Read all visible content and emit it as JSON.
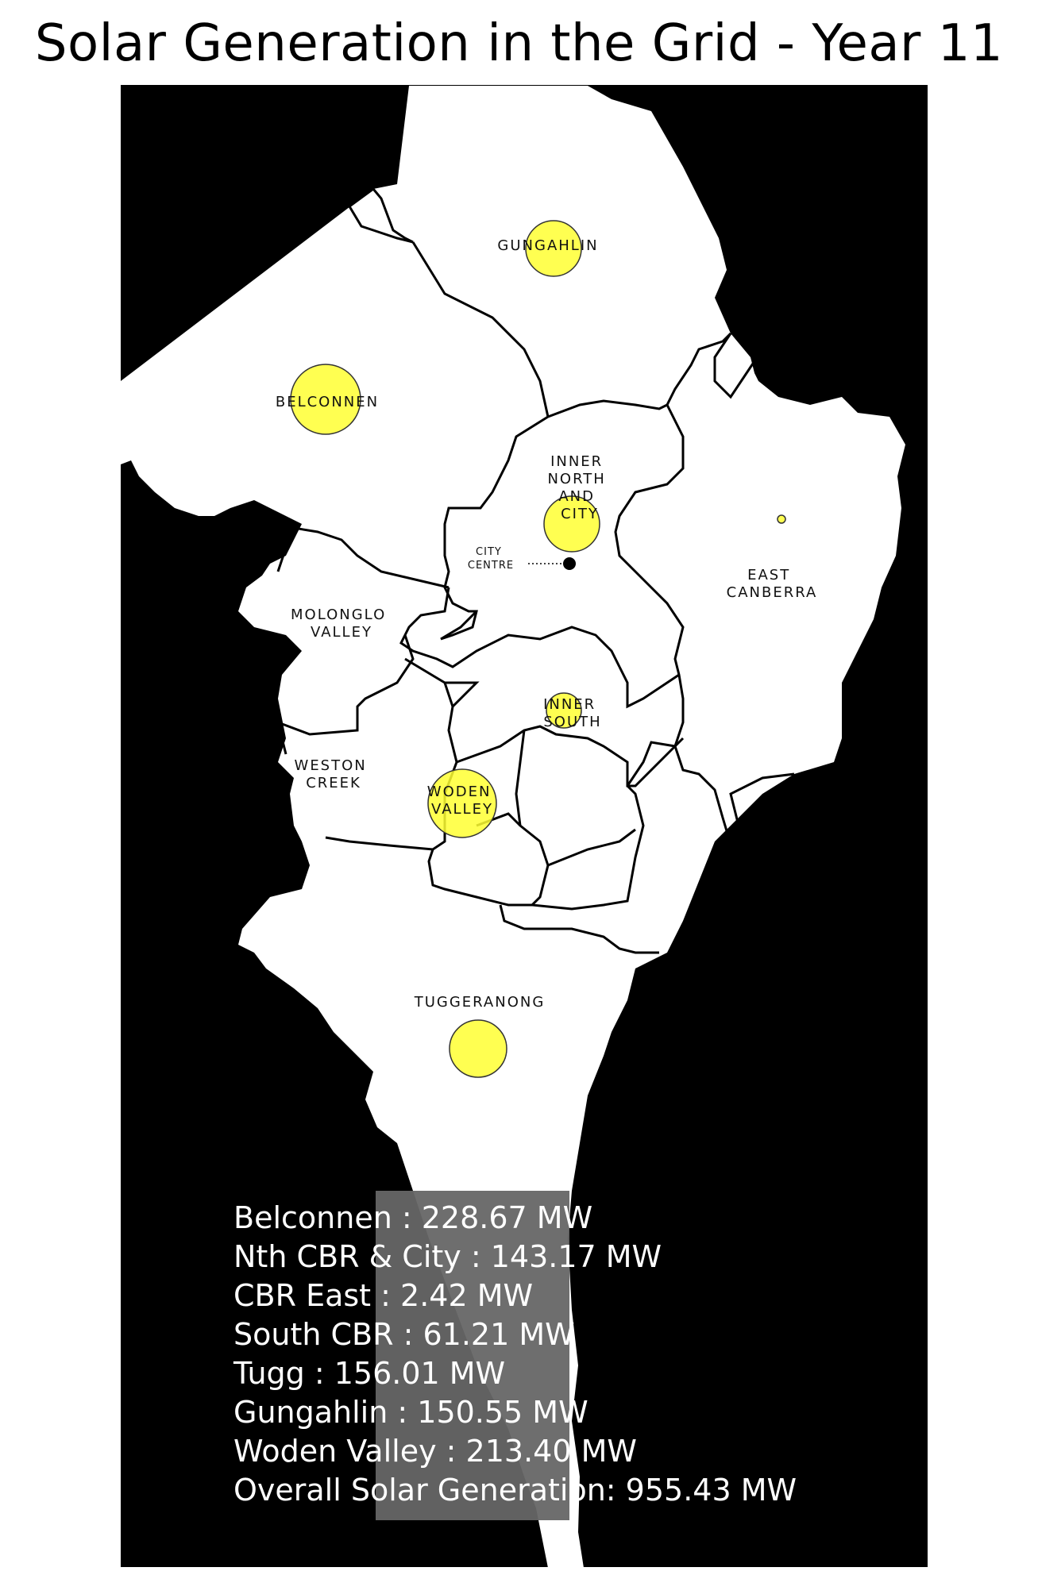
{
  "title": "Solar Generation in the Grid - Year 11",
  "colors": {
    "ocean": "#000000",
    "land": "#ffffff",
    "bubble": "#ffff33",
    "panel": "#666666"
  },
  "regions": [
    {
      "id": "gungahlin",
      "label_lines": [
        "GUNGAHLIN"
      ]
    },
    {
      "id": "belconnen",
      "label_lines": [
        "BELCONNEN"
      ]
    },
    {
      "id": "inner-north",
      "label_lines": [
        "INNER",
        "NORTH",
        "AND",
        "CITY"
      ]
    },
    {
      "id": "east-canberra",
      "label_lines": [
        "EAST",
        "CANBERRA"
      ]
    },
    {
      "id": "molonglo",
      "label_lines": [
        "MOLONGLO",
        "VALLEY"
      ]
    },
    {
      "id": "inner-south",
      "label_lines": [
        "INNER",
        "SOUTH"
      ]
    },
    {
      "id": "weston",
      "label_lines": [
        "WESTON",
        "CREEK"
      ]
    },
    {
      "id": "woden",
      "label_lines": [
        "WODEN",
        "VALLEY"
      ]
    },
    {
      "id": "tuggeranong",
      "label_lines": [
        "TUGGERANONG"
      ]
    }
  ],
  "city_centre": {
    "label_lines": [
      "CITY",
      "CENTRE"
    ]
  },
  "generation": [
    {
      "region": "Belconnen",
      "mw": 228.67
    },
    {
      "region": "Nth CBR & City",
      "mw": 143.17
    },
    {
      "region": "CBR East",
      "mw": 2.42
    },
    {
      "region": "South CBR",
      "mw": 61.21
    },
    {
      "region": "Tugg",
      "mw": 156.01
    },
    {
      "region": "Gungahlin",
      "mw": 150.55
    },
    {
      "region": "Woden Valley",
      "mw": 213.4
    }
  ],
  "legend": {
    "lines": [
      "Belconnen : 228.67 MW",
      "Nth CBR & City : 143.17 MW",
      "CBR East : 2.42 MW",
      "South CBR : 61.21 MW",
      "Tugg : 156.01 MW",
      "Gungahlin : 150.55 MW",
      "Woden Valley : 213.40 MW",
      "Overall Solar Generation: 955.43 MW"
    ]
  }
}
